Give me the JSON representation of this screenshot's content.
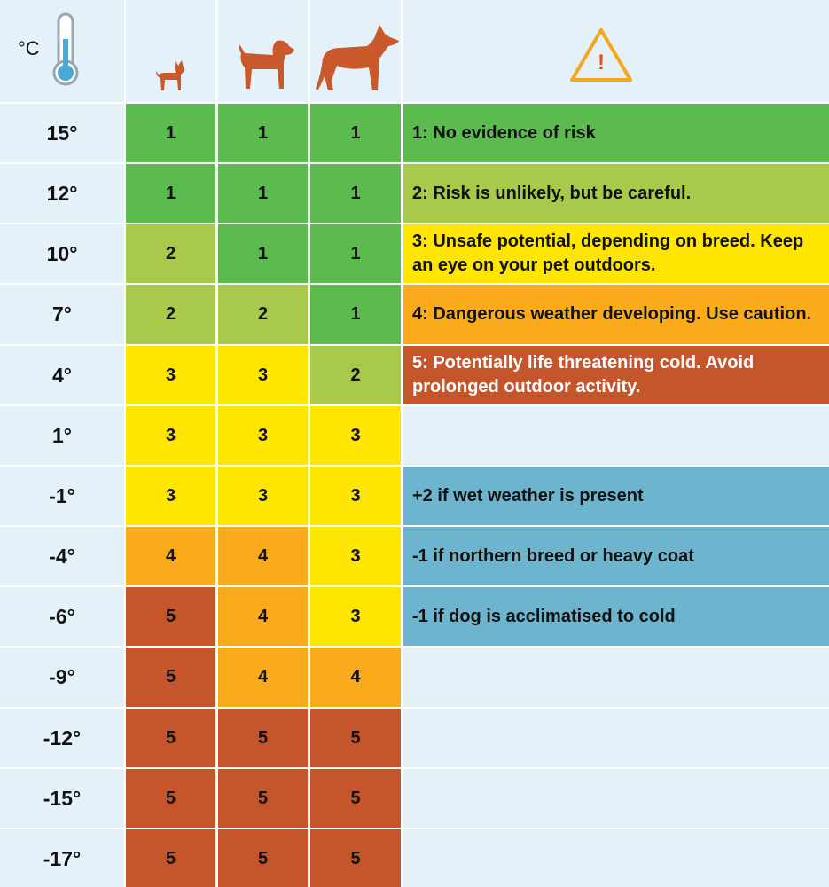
{
  "header": {
    "unit": "°C"
  },
  "level_colors": [
    "#5cbb4e",
    "#a9c94a",
    "#ffe600",
    "#f9ab1c",
    "#c5552b"
  ],
  "modifier_color": "#6db4ce",
  "table": {
    "rows": [
      {
        "temp": "15°",
        "values": [
          1,
          1,
          1
        ]
      },
      {
        "temp": "12°",
        "values": [
          1,
          1,
          1
        ]
      },
      {
        "temp": "10°",
        "values": [
          2,
          1,
          1
        ]
      },
      {
        "temp": "7°",
        "values": [
          2,
          2,
          1
        ]
      },
      {
        "temp": "4°",
        "values": [
          3,
          3,
          2
        ]
      },
      {
        "temp": "1°",
        "values": [
          3,
          3,
          3
        ]
      },
      {
        "temp": "-1°",
        "values": [
          3,
          3,
          3
        ]
      },
      {
        "temp": "-4°",
        "values": [
          4,
          4,
          3
        ]
      },
      {
        "temp": "-6°",
        "values": [
          5,
          4,
          3
        ]
      },
      {
        "temp": "-9°",
        "values": [
          5,
          4,
          4
        ]
      },
      {
        "temp": "-12°",
        "values": [
          5,
          5,
          5
        ]
      },
      {
        "temp": "-15°",
        "values": [
          5,
          5,
          5
        ]
      },
      {
        "temp": "-17°",
        "values": [
          5,
          5,
          5
        ]
      }
    ]
  },
  "legend": [
    "1: No evidence of risk",
    "2: Risk is unlikely, but be careful.",
    "3: Unsafe potential, depending on breed. Keep an eye on your pet outdoors.",
    "4: Dangerous weather developing. Use caution.",
    "5: Potentially life threatening cold. Avoid prolonged outdoor activity."
  ],
  "modifiers": [
    "+2 if wet weather is present",
    "-1 if northern breed or heavy coat",
    "-1 if dog is acclimatised to cold"
  ]
}
